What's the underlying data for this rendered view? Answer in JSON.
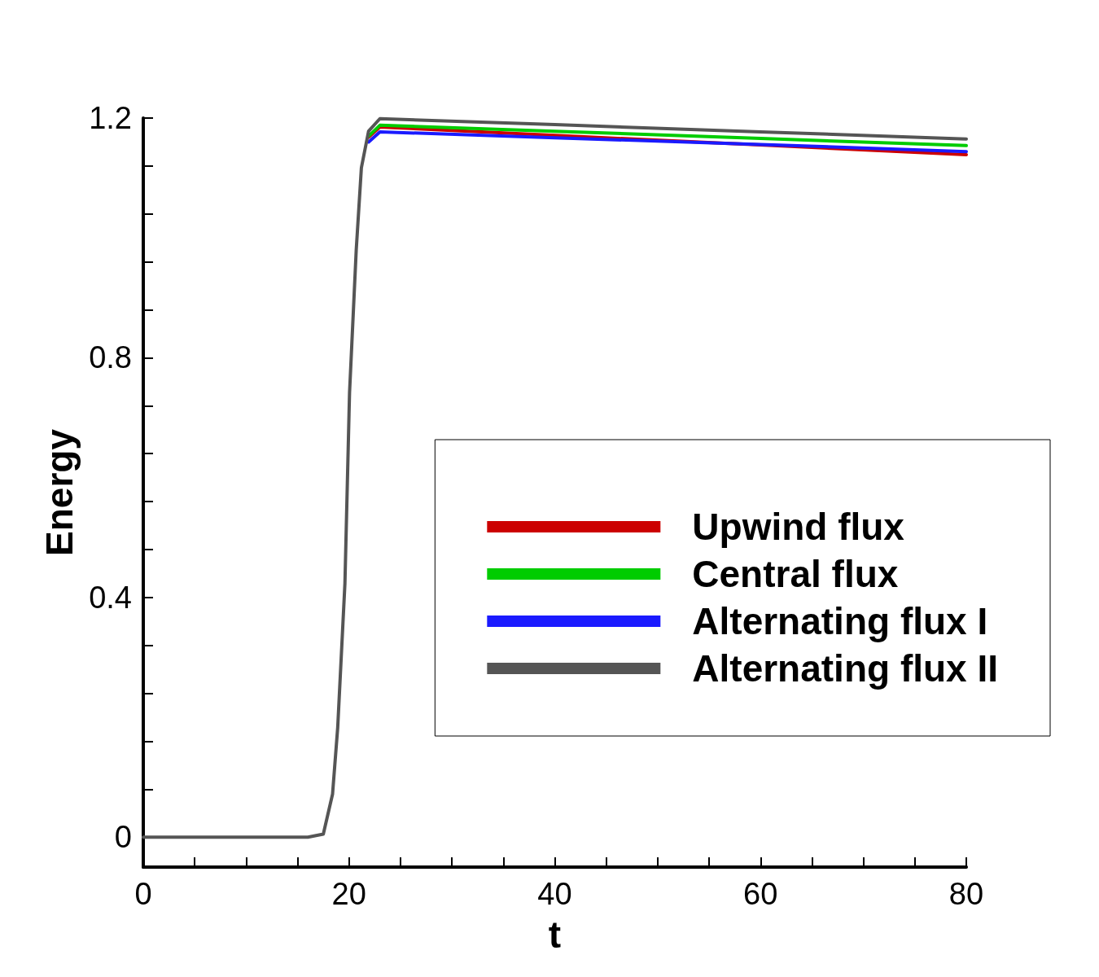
{
  "chart_data": {
    "type": "line",
    "xlabel": "t",
    "ylabel": "Energy",
    "xlim": [
      0,
      80
    ],
    "ylim": [
      -0.05,
      1.2
    ],
    "xticks": [
      0,
      {
        "value": 5,
        "label": null
      },
      {
        "value": 10,
        "label": null
      },
      {
        "value": 15,
        "label": null
      },
      20,
      {
        "value": 25,
        "label": null
      },
      {
        "value": 30,
        "label": null
      },
      {
        "value": 35,
        "label": null
      },
      40,
      {
        "value": 45,
        "label": null
      },
      {
        "value": 50,
        "label": null
      },
      {
        "value": 55,
        "label": null
      },
      60,
      {
        "value": 65,
        "label": null
      },
      {
        "value": 70,
        "label": null
      },
      {
        "value": 75,
        "label": null
      },
      80
    ],
    "yticks": [
      0,
      {
        "value": 0.08,
        "label": null
      },
      {
        "value": 0.16,
        "label": null
      },
      {
        "value": 0.24,
        "label": null
      },
      {
        "value": 0.32,
        "label": null
      },
      0.4,
      {
        "value": 0.48,
        "label": null
      },
      {
        "value": 0.56,
        "label": null
      },
      {
        "value": 0.64,
        "label": null
      },
      {
        "value": 0.72,
        "label": null
      },
      0.8,
      {
        "value": 0.88,
        "label": null
      },
      {
        "value": 0.96,
        "label": null
      },
      {
        "value": 1.04,
        "label": null
      },
      {
        "value": 1.12,
        "label": null
      },
      1.2
    ],
    "grid": false,
    "legend": "right",
    "marker": "none",
    "line_style": "solid",
    "x": [
      0,
      16,
      17.5,
      18.4,
      18.9,
      19.6,
      20.05,
      20.7,
      21.2,
      21.9,
      23,
      40,
      60,
      80
    ],
    "series": [
      {
        "name": "Upwind flux",
        "color": "#cc0000",
        "values": [
          null,
          null,
          null,
          null,
          null,
          null,
          null,
          null,
          null,
          1.168,
          1.185,
          1.171,
          1.155,
          1.139
        ]
      },
      {
        "name": "Central flux",
        "color": "#00cc00",
        "values": [
          null,
          null,
          null,
          null,
          null,
          null,
          null,
          null,
          null,
          1.17,
          1.188,
          1.178,
          1.166,
          1.154
        ]
      },
      {
        "name": "Alternating flux I",
        "color": "#1a1aff",
        "values": [
          null,
          null,
          null,
          null,
          null,
          null,
          null,
          null,
          null,
          1.16,
          1.177,
          1.167,
          1.156,
          1.144
        ]
      },
      {
        "name": "Alternating flux II",
        "color": "#555555",
        "values": [
          0,
          0,
          0.005,
          0.072,
          0.183,
          0.423,
          0.742,
          0.98,
          1.117,
          1.178,
          1.199,
          1.189,
          1.177,
          1.165
        ]
      }
    ]
  }
}
